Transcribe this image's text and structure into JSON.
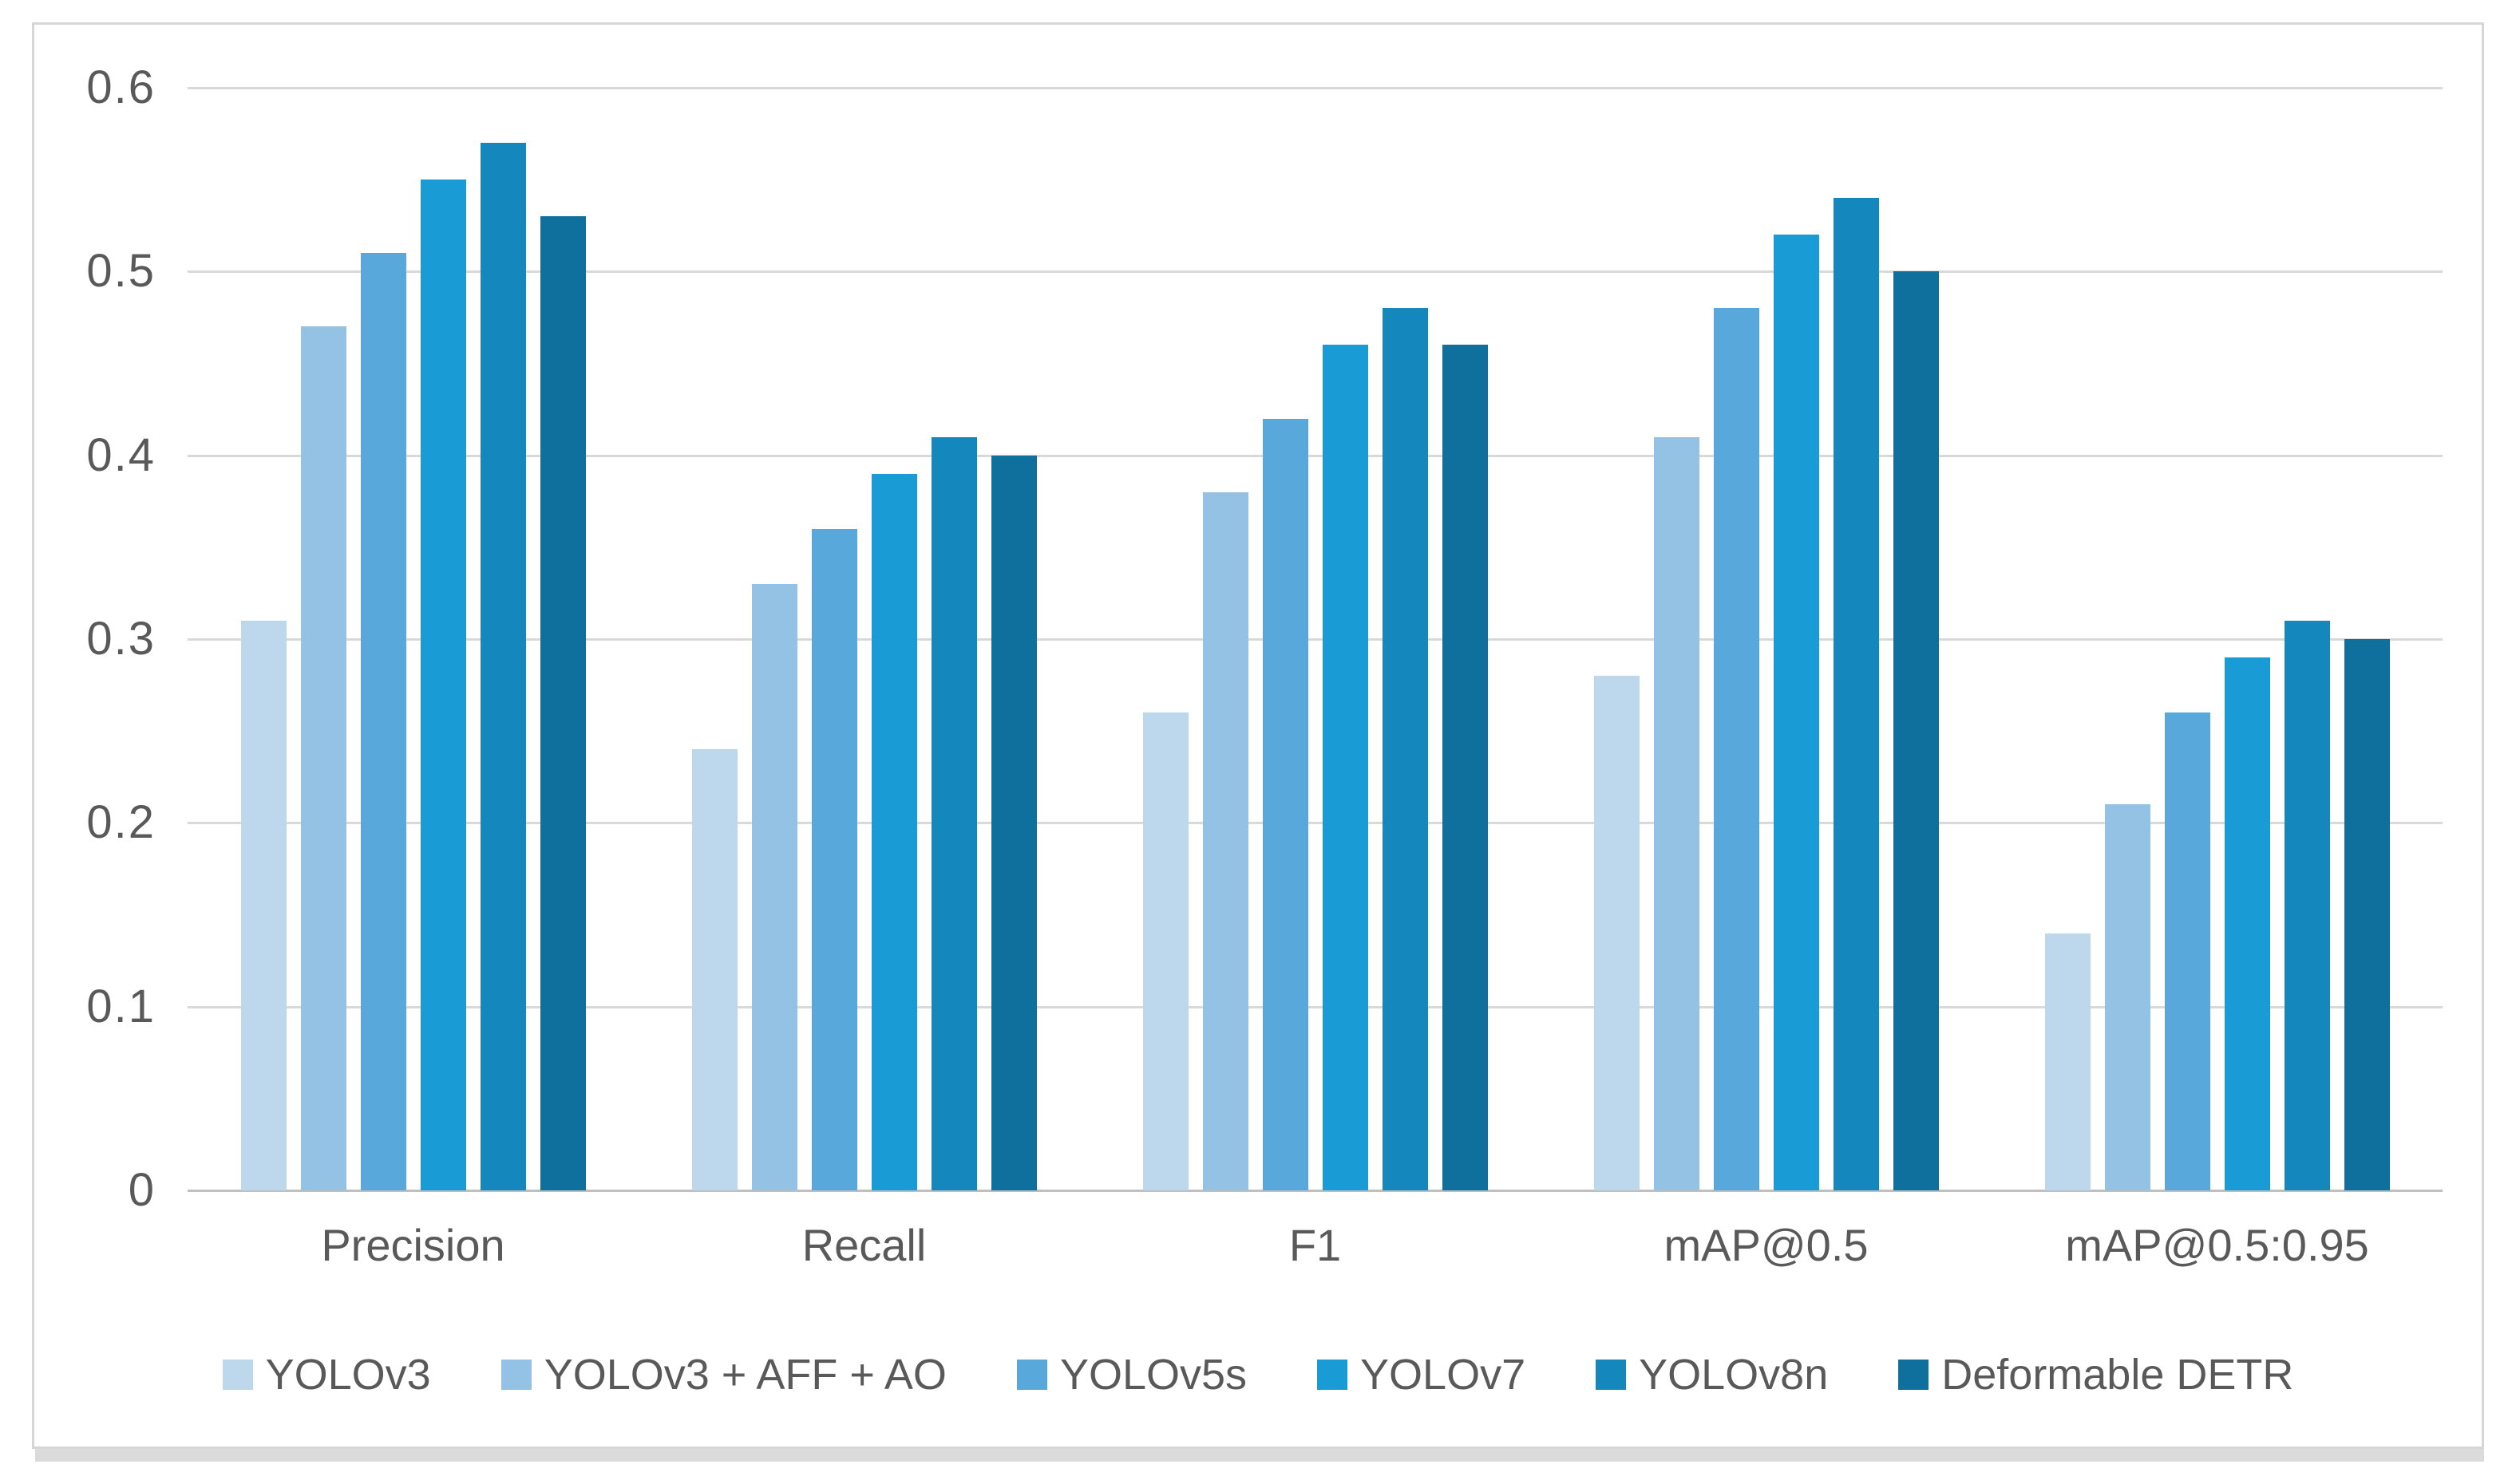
{
  "chart_data": {
    "type": "bar",
    "title": "",
    "categories": [
      "Precision",
      "Recall",
      "F1",
      "mAP@0.5",
      "mAP@0.5:0.95"
    ],
    "series": [
      {
        "name": "YOLOv3",
        "color": "#BDD7EC",
        "values": [
          0.31,
          0.24,
          0.26,
          0.28,
          0.14
        ]
      },
      {
        "name": "YOLOv3 + AFF + AO",
        "color": "#93C2E4",
        "values": [
          0.47,
          0.33,
          0.38,
          0.41,
          0.21
        ]
      },
      {
        "name": "YOLOv5s",
        "color": "#58A8DC",
        "values": [
          0.51,
          0.36,
          0.42,
          0.48,
          0.26
        ]
      },
      {
        "name": "YOLOv7",
        "color": "#199CD6",
        "values": [
          0.55,
          0.39,
          0.46,
          0.52,
          0.29
        ]
      },
      {
        "name": "YOLOv8n",
        "color": "#1487BD",
        "values": [
          0.57,
          0.41,
          0.48,
          0.54,
          0.31
        ]
      },
      {
        "name": "Deformable DETR",
        "color": "#0F6F9D",
        "values": [
          0.53,
          0.4,
          0.46,
          0.5,
          0.3
        ]
      }
    ],
    "ylim": [
      0,
      0.6
    ],
    "ytick_step": 0.1,
    "ytick_labels": [
      "0",
      "0.1",
      "0.2",
      "0.3",
      "0.4",
      "0.5",
      "0.6"
    ],
    "xlabel": "",
    "ylabel": "",
    "grid": "horizontal",
    "legend_position": "bottom",
    "colors": {
      "grid_line": "#D9D9D9",
      "axis_line": "#BFBFBF",
      "tick_text": "#595959",
      "frame_border": "#D6D6D6",
      "frame_shadow": "#DBDBDB",
      "background": "#FFFFFF"
    }
  }
}
